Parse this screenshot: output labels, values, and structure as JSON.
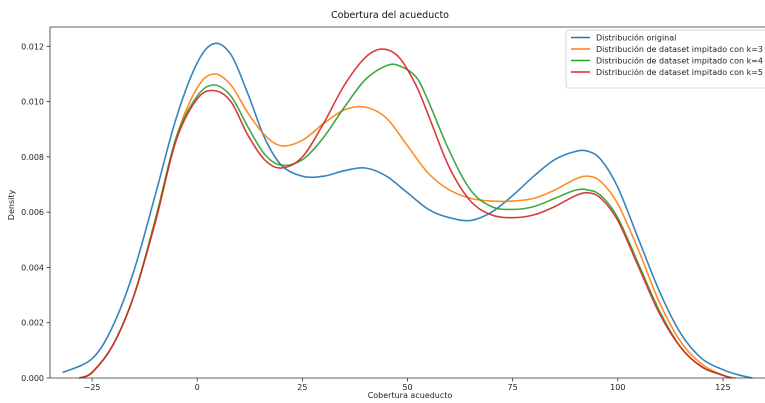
{
  "chart_data": {
    "type": "line",
    "title": "Cobertura del acueducto",
    "xlabel": "Cobertura  acueducto",
    "ylabel": "Density",
    "xlim": [
      -35,
      135
    ],
    "ylim": [
      0,
      0.0127
    ],
    "x_ticks": [
      -25,
      0,
      25,
      50,
      75,
      100,
      125
    ],
    "y_ticks": [
      0.0,
      0.002,
      0.004,
      0.006,
      0.008,
      0.01,
      0.012
    ],
    "x_tick_labels": [
      "−25",
      "0",
      "25",
      "50",
      "75",
      "100",
      "125"
    ],
    "y_tick_labels": [
      "0.000",
      "0.002",
      "0.004",
      "0.006",
      "0.008",
      "0.010",
      "0.012"
    ],
    "grid": false,
    "legend_position": "top-right",
    "series": [
      {
        "name": "Distribución original",
        "color": "#1f77b4",
        "x": [
          -32,
          -25,
          -20,
          -15,
          -10,
          -5,
          0,
          4,
          8,
          12,
          16,
          20,
          25,
          30,
          35,
          40,
          45,
          50,
          55,
          60,
          65,
          70,
          75,
          80,
          85,
          90,
          93,
          96,
          100,
          105,
          110,
          115,
          120,
          125,
          129,
          132
        ],
        "y": [
          0.0002,
          0.0007,
          0.0019,
          0.0039,
          0.0066,
          0.0094,
          0.0114,
          0.0121,
          0.0117,
          0.0103,
          0.0087,
          0.0077,
          0.0073,
          0.0073,
          0.0075,
          0.0076,
          0.0073,
          0.0067,
          0.0061,
          0.0058,
          0.0057,
          0.006,
          0.0066,
          0.0073,
          0.0079,
          0.0082,
          0.0082,
          0.0079,
          0.0069,
          0.005,
          0.0031,
          0.0016,
          0.0007,
          0.0003,
          0.0001,
          0.0
        ]
      },
      {
        "name": "Distribución de dataset impitado con k=3",
        "color": "#ff7f0e",
        "x": [
          -28,
          -25,
          -20,
          -15,
          -10,
          -5,
          0,
          4,
          8,
          12,
          16,
          20,
          25,
          30,
          35,
          40,
          45,
          50,
          55,
          60,
          65,
          70,
          75,
          80,
          85,
          90,
          93,
          96,
          100,
          105,
          110,
          115,
          120,
          125,
          128
        ],
        "y": [
          0.0,
          0.0002,
          0.0012,
          0.003,
          0.0057,
          0.0087,
          0.0105,
          0.011,
          0.0106,
          0.0096,
          0.0088,
          0.0084,
          0.0086,
          0.0092,
          0.0097,
          0.0098,
          0.0094,
          0.0084,
          0.0074,
          0.0068,
          0.0065,
          0.0064,
          0.0064,
          0.0065,
          0.0068,
          0.0072,
          0.0073,
          0.0071,
          0.0063,
          0.0046,
          0.0027,
          0.0013,
          0.0005,
          0.0001,
          0.0
        ]
      },
      {
        "name": "Distribución de dataset impitado con k=4",
        "color": "#2ca02c",
        "x": [
          -28,
          -25,
          -20,
          -15,
          -10,
          -5,
          0,
          4,
          8,
          12,
          16,
          20,
          25,
          30,
          35,
          40,
          45,
          48,
          52,
          55,
          60,
          65,
          70,
          75,
          80,
          85,
          90,
          93,
          96,
          100,
          105,
          110,
          115,
          120,
          125,
          127
        ],
        "y": [
          0.0,
          0.0002,
          0.0012,
          0.003,
          0.0057,
          0.0087,
          0.0102,
          0.0106,
          0.0102,
          0.0091,
          0.0081,
          0.0077,
          0.0079,
          0.0087,
          0.0098,
          0.0108,
          0.0113,
          0.0113,
          0.0109,
          0.01,
          0.0082,
          0.0068,
          0.0062,
          0.0061,
          0.0062,
          0.0065,
          0.0068,
          0.0068,
          0.0066,
          0.0058,
          0.0041,
          0.0024,
          0.0011,
          0.0004,
          0.0001,
          0.0
        ]
      },
      {
        "name": "Distribución de dataset impitado con k=5",
        "color": "#d62728",
        "x": [
          -28,
          -25,
          -20,
          -15,
          -10,
          -5,
          0,
          4,
          8,
          12,
          16,
          20,
          25,
          30,
          35,
          40,
          44,
          48,
          52,
          55,
          60,
          65,
          70,
          75,
          80,
          85,
          90,
          93,
          96,
          100,
          105,
          110,
          115,
          120,
          125,
          127
        ],
        "y": [
          0.0,
          0.0002,
          0.0012,
          0.003,
          0.0056,
          0.0086,
          0.0101,
          0.0104,
          0.01,
          0.0088,
          0.0079,
          0.0076,
          0.008,
          0.0092,
          0.0106,
          0.0116,
          0.0119,
          0.0116,
          0.0106,
          0.0095,
          0.0076,
          0.0064,
          0.0059,
          0.0058,
          0.0059,
          0.0062,
          0.0066,
          0.0067,
          0.0065,
          0.0057,
          0.004,
          0.0023,
          0.0011,
          0.0004,
          0.0001,
          0.0
        ]
      }
    ]
  }
}
